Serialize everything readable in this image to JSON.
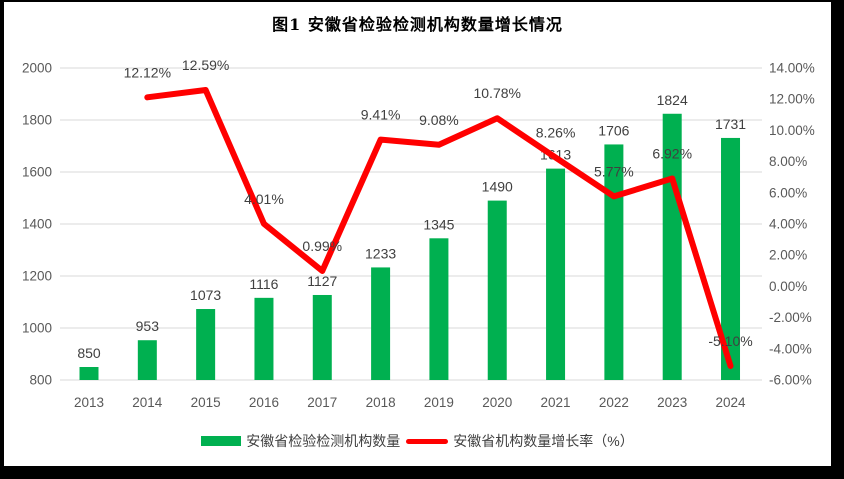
{
  "chart_data": {
    "type": "combo",
    "title": "图1 安徽省检验检测机构数量增长情况",
    "categories": [
      "2013",
      "2014",
      "2015",
      "2016",
      "2017",
      "2018",
      "2019",
      "2020",
      "2021",
      "2022",
      "2023",
      "2024"
    ],
    "series": [
      {
        "name": "安徽省检验检测机构数量",
        "type": "bar",
        "axis": "left",
        "color": "#00B050",
        "values": [
          850,
          953,
          1073,
          1116,
          1127,
          1233,
          1345,
          1490,
          1613,
          1706,
          1824,
          1731
        ],
        "labels": [
          "850",
          "953",
          "1073",
          "1116",
          "1127",
          "1233",
          "1345",
          "1490",
          "1613",
          "1706",
          "1824",
          "1731"
        ]
      },
      {
        "name": "安徽省机构数量增长率（%）",
        "type": "line",
        "axis": "right",
        "color": "#FF0000",
        "values": [
          null,
          12.12,
          12.59,
          4.01,
          0.99,
          9.41,
          9.08,
          10.78,
          8.26,
          5.77,
          6.92,
          -5.1
        ],
        "labels": [
          null,
          "12.12%",
          "12.59%",
          "4.01%",
          "0.99%",
          "9.41%",
          "9.08%",
          "10.78%",
          "8.26%",
          "5.77%",
          "6.92%",
          "-5.10%"
        ]
      }
    ],
    "left_axis": {
      "min": 800,
      "max": 2000,
      "step": 200,
      "tick_values": [
        800,
        1000,
        1200,
        1400,
        1600,
        1800,
        2000
      ],
      "tick_labels": [
        "800",
        "1000",
        "1200",
        "1400",
        "1600",
        "1800",
        "2000"
      ]
    },
    "right_axis": {
      "min": -6,
      "max": 14,
      "step": 2,
      "tick_values": [
        -6,
        -4,
        -2,
        0,
        2,
        4,
        6,
        8,
        10,
        12,
        14
      ],
      "tick_labels": [
        "-6.00%",
        "-4.00%",
        "-2.00%",
        "0.00%",
        "2.00%",
        "4.00%",
        "6.00%",
        "8.00%",
        "10.00%",
        "12.00%",
        "14.00%"
      ]
    },
    "grid": true,
    "legend_position": "bottom",
    "colors": {
      "gridline": "#D9D9D9",
      "axis_text": "#595959",
      "data_label": "#404040",
      "title_text": "#000000",
      "frame": "#000000",
      "background": "#FFFFFF"
    }
  }
}
